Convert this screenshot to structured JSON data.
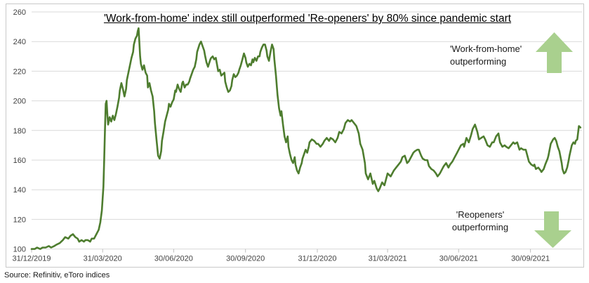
{
  "title": "'Work-from-home' index still outperformed 'Re-openers' by 80% since pandemic start",
  "source": "Source: Refinitiv, eToro indices",
  "annotations": {
    "wfh": {
      "line1": "'Work-from-home'",
      "line2": "outperforming"
    },
    "reopeners": {
      "line1": "'Reopeners'",
      "line2": "outperforming"
    }
  },
  "colors": {
    "line": "#4e7d2f",
    "arrow": "#a9d08e",
    "grid": "#d9d9d9",
    "tick": "#bfbfbf",
    "axis_text": "#404040",
    "frame": "#c9c9c9"
  },
  "chart_data": {
    "type": "line",
    "title": "'Work-from-home' index still outperformed 'Re-openers' by 80% since pandemic start",
    "xlabel": "",
    "ylabel": "",
    "ylim": [
      100,
      260
    ],
    "y_ticks": [
      100,
      120,
      140,
      160,
      180,
      200,
      220,
      240,
      260
    ],
    "grid": true,
    "legend_position": "none",
    "x_axis": {
      "tick_labels": [
        "31/12/2019",
        "31/03/2020",
        "30/06/2020",
        "30/09/2020",
        "31/12/2020",
        "31/03/2021",
        "30/06/2021",
        "30/09/2021"
      ],
      "tick_day_offsets": [
        0,
        91,
        182,
        274,
        366,
        456,
        547,
        639
      ],
      "domain_days": [
        0,
        705
      ],
      "start_date": "31/12/2019"
    },
    "points_format": [
      "days_since_31_12_2019",
      "index_value"
    ],
    "points": [
      [
        0,
        100
      ],
      [
        4,
        100
      ],
      [
        7,
        101
      ],
      [
        11,
        100
      ],
      [
        14,
        101
      ],
      [
        18,
        101
      ],
      [
        22,
        102
      ],
      [
        25,
        101
      ],
      [
        29,
        102
      ],
      [
        32,
        103
      ],
      [
        36,
        104
      ],
      [
        40,
        106
      ],
      [
        43,
        108
      ],
      [
        47,
        107
      ],
      [
        50,
        109
      ],
      [
        53,
        110
      ],
      [
        56,
        108
      ],
      [
        59,
        107
      ],
      [
        61,
        105
      ],
      [
        64,
        106
      ],
      [
        67,
        105
      ],
      [
        69,
        106
      ],
      [
        72,
        106
      ],
      [
        75,
        105
      ],
      [
        77,
        107
      ],
      [
        80,
        107
      ],
      [
        83,
        110
      ],
      [
        86,
        113
      ],
      [
        88,
        118
      ],
      [
        90,
        126
      ],
      [
        92,
        142
      ],
      [
        93,
        160
      ],
      [
        94,
        180
      ],
      [
        95,
        198
      ],
      [
        96,
        200
      ],
      [
        97,
        191
      ],
      [
        98,
        184
      ],
      [
        100,
        189
      ],
      [
        102,
        186
      ],
      [
        104,
        190
      ],
      [
        106,
        187
      ],
      [
        108,
        191
      ],
      [
        110,
        196
      ],
      [
        112,
        202
      ],
      [
        113,
        207
      ],
      [
        115,
        212
      ],
      [
        117,
        208
      ],
      [
        119,
        203
      ],
      [
        121,
        208
      ],
      [
        122,
        214
      ],
      [
        124,
        219
      ],
      [
        126,
        224
      ],
      [
        128,
        229
      ],
      [
        130,
        233
      ],
      [
        131,
        238
      ],
      [
        133,
        242
      ],
      [
        135,
        244
      ],
      [
        136,
        247
      ],
      [
        137,
        249
      ],
      [
        139,
        230
      ],
      [
        140,
        225
      ],
      [
        142,
        221
      ],
      [
        144,
        224
      ],
      [
        146,
        219
      ],
      [
        148,
        217
      ],
      [
        149,
        209
      ],
      [
        151,
        212
      ],
      [
        153,
        207
      ],
      [
        155,
        203
      ],
      [
        157,
        193
      ],
      [
        158,
        185
      ],
      [
        160,
        174
      ],
      [
        162,
        163
      ],
      [
        164,
        161
      ],
      [
        166,
        166
      ],
      [
        167,
        173
      ],
      [
        169,
        179
      ],
      [
        171,
        186
      ],
      [
        173,
        190
      ],
      [
        175,
        194
      ],
      [
        176,
        198
      ],
      [
        178,
        196
      ],
      [
        180,
        199
      ],
      [
        182,
        201
      ],
      [
        184,
        207
      ],
      [
        185,
        206
      ],
      [
        187,
        211
      ],
      [
        189,
        208
      ],
      [
        191,
        206
      ],
      [
        193,
        212
      ],
      [
        194,
        213
      ],
      [
        196,
        209
      ],
      [
        198,
        211
      ],
      [
        200,
        211
      ],
      [
        202,
        213
      ],
      [
        203,
        215
      ],
      [
        205,
        218
      ],
      [
        207,
        221
      ],
      [
        209,
        223
      ],
      [
        211,
        228
      ],
      [
        212,
        233
      ],
      [
        215,
        238
      ],
      [
        217,
        240
      ],
      [
        219,
        237
      ],
      [
        221,
        234
      ],
      [
        222,
        231
      ],
      [
        224,
        226
      ],
      [
        226,
        223
      ],
      [
        229,
        228
      ],
      [
        230,
        229
      ],
      [
        232,
        230
      ],
      [
        234,
        228
      ],
      [
        236,
        229
      ],
      [
        238,
        223
      ],
      [
        239,
        220
      ],
      [
        241,
        221
      ],
      [
        243,
        217
      ],
      [
        245,
        218
      ],
      [
        247,
        219
      ],
      [
        248,
        213
      ],
      [
        250,
        209
      ],
      [
        252,
        206
      ],
      [
        254,
        207
      ],
      [
        256,
        210
      ],
      [
        257,
        214
      ],
      [
        259,
        218
      ],
      [
        261,
        216
      ],
      [
        263,
        217
      ],
      [
        265,
        219
      ],
      [
        266,
        221
      ],
      [
        268,
        224
      ],
      [
        270,
        228
      ],
      [
        272,
        232
      ],
      [
        274,
        229
      ],
      [
        275,
        226
      ],
      [
        277,
        223
      ],
      [
        279,
        225
      ],
      [
        281,
        224
      ],
      [
        283,
        228
      ],
      [
        284,
        226
      ],
      [
        286,
        229
      ],
      [
        288,
        227
      ],
      [
        290,
        230
      ],
      [
        292,
        230
      ],
      [
        293,
        233
      ],
      [
        295,
        236
      ],
      [
        297,
        238
      ],
      [
        299,
        238
      ],
      [
        301,
        234
      ],
      [
        302,
        230
      ],
      [
        304,
        227
      ],
      [
        306,
        233
      ],
      [
        308,
        238
      ],
      [
        310,
        235
      ],
      [
        311,
        228
      ],
      [
        313,
        217
      ],
      [
        315,
        204
      ],
      [
        317,
        195
      ],
      [
        319,
        190
      ],
      [
        320,
        193
      ],
      [
        322,
        184
      ],
      [
        324,
        176
      ],
      [
        326,
        172
      ],
      [
        328,
        176
      ],
      [
        329,
        169
      ],
      [
        331,
        164
      ],
      [
        333,
        160
      ],
      [
        335,
        158
      ],
      [
        337,
        162
      ],
      [
        338,
        157
      ],
      [
        340,
        153
      ],
      [
        342,
        151
      ],
      [
        344,
        155
      ],
      [
        346,
        158
      ],
      [
        347,
        161
      ],
      [
        349,
        164
      ],
      [
        351,
        167
      ],
      [
        353,
        165
      ],
      [
        355,
        169
      ],
      [
        356,
        172
      ],
      [
        359,
        174
      ],
      [
        362,
        173
      ],
      [
        365,
        171
      ],
      [
        367,
        171
      ],
      [
        370,
        169
      ],
      [
        373,
        171
      ],
      [
        375,
        173
      ],
      [
        378,
        175
      ],
      [
        381,
        173
      ],
      [
        383,
        175
      ],
      [
        386,
        174
      ],
      [
        389,
        172
      ],
      [
        392,
        175
      ],
      [
        394,
        179
      ],
      [
        397,
        178
      ],
      [
        400,
        181
      ],
      [
        402,
        185
      ],
      [
        405,
        187
      ],
      [
        408,
        186
      ],
      [
        410,
        187
      ],
      [
        413,
        185
      ],
      [
        416,
        183
      ],
      [
        419,
        178
      ],
      [
        421,
        171
      ],
      [
        424,
        167
      ],
      [
        427,
        158
      ],
      [
        428,
        151
      ],
      [
        431,
        147
      ],
      [
        434,
        151
      ],
      [
        437,
        144
      ],
      [
        439,
        146
      ],
      [
        442,
        141
      ],
      [
        444,
        139
      ],
      [
        446,
        141
      ],
      [
        449,
        145
      ],
      [
        452,
        143
      ],
      [
        455,
        149
      ],
      [
        456,
        151
      ],
      [
        458,
        150
      ],
      [
        460,
        149
      ],
      [
        463,
        152
      ],
      [
        464,
        153
      ],
      [
        467,
        155
      ],
      [
        470,
        157
      ],
      [
        473,
        159
      ],
      [
        475,
        162
      ],
      [
        478,
        163
      ],
      [
        481,
        158
      ],
      [
        483,
        159
      ],
      [
        486,
        162
      ],
      [
        489,
        165
      ],
      [
        491,
        166
      ],
      [
        494,
        167
      ],
      [
        496,
        167
      ],
      [
        499,
        163
      ],
      [
        501,
        161
      ],
      [
        504,
        160
      ],
      [
        507,
        160
      ],
      [
        509,
        156
      ],
      [
        512,
        154
      ],
      [
        515,
        153
      ],
      [
        518,
        151
      ],
      [
        520,
        149
      ],
      [
        523,
        151
      ],
      [
        526,
        154
      ],
      [
        528,
        156
      ],
      [
        531,
        158
      ],
      [
        534,
        155
      ],
      [
        536,
        157
      ],
      [
        539,
        159
      ],
      [
        542,
        162
      ],
      [
        545,
        165
      ],
      [
        547,
        167
      ],
      [
        550,
        170
      ],
      [
        553,
        171
      ],
      [
        554,
        169
      ],
      [
        557,
        175
      ],
      [
        560,
        172
      ],
      [
        563,
        177
      ],
      [
        565,
        181
      ],
      [
        568,
        184
      ],
      [
        571,
        179
      ],
      [
        573,
        174
      ],
      [
        576,
        175
      ],
      [
        579,
        176
      ],
      [
        581,
        174
      ],
      [
        584,
        170
      ],
      [
        587,
        169
      ],
      [
        590,
        172
      ],
      [
        592,
        172
      ],
      [
        595,
        176
      ],
      [
        598,
        178
      ],
      [
        600,
        172
      ],
      [
        603,
        169
      ],
      [
        606,
        170
      ],
      [
        608,
        169
      ],
      [
        611,
        168
      ],
      [
        614,
        170
      ],
      [
        617,
        172
      ],
      [
        619,
        171
      ],
      [
        622,
        172
      ],
      [
        625,
        167
      ],
      [
        627,
        168
      ],
      [
        630,
        167
      ],
      [
        633,
        167
      ],
      [
        635,
        163
      ],
      [
        637,
        159
      ],
      [
        640,
        157
      ],
      [
        643,
        156
      ],
      [
        644,
        157
      ],
      [
        646,
        154
      ],
      [
        649,
        155
      ],
      [
        652,
        153
      ],
      [
        653,
        152
      ],
      [
        656,
        154
      ],
      [
        658,
        157
      ],
      [
        661,
        161
      ],
      [
        662,
        163
      ],
      [
        665,
        171
      ],
      [
        668,
        174
      ],
      [
        670,
        175
      ],
      [
        672,
        173
      ],
      [
        674,
        169
      ],
      [
        676,
        166
      ],
      [
        679,
        158
      ],
      [
        680,
        154
      ],
      [
        682,
        151
      ],
      [
        684,
        152
      ],
      [
        686,
        155
      ],
      [
        688,
        160
      ],
      [
        689,
        163
      ],
      [
        692,
        170
      ],
      [
        694,
        172
      ],
      [
        696,
        171
      ],
      [
        697,
        173
      ],
      [
        699,
        174
      ],
      [
        701,
        183
      ],
      [
        703,
        182
      ]
    ]
  }
}
